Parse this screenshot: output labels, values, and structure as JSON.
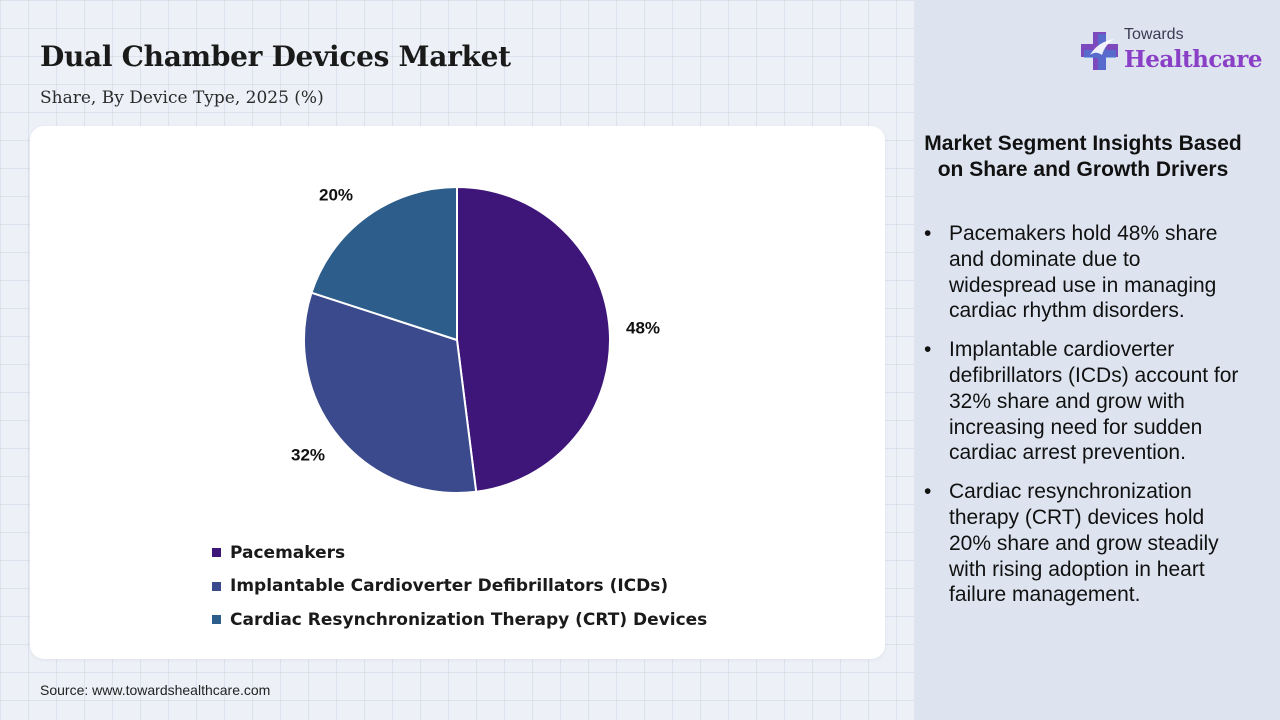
{
  "header": {
    "title": "Dual Chamber Devices Market",
    "subtitle": "Share, By Device Type, 2025 (%)"
  },
  "chart_data": {
    "type": "pie",
    "series": [
      {
        "name": "Pacemakers",
        "value": 48,
        "label": "48%",
        "color": "#3e1578"
      },
      {
        "name": "Implantable Cardioverter Defibrillators (ICDs)",
        "value": 32,
        "label": "32%",
        "color": "#3a4a8c"
      },
      {
        "name": "Cardiac Resynchronization Therapy (CRT) Devices",
        "value": 20,
        "label": "20%",
        "color": "#2d5d8b"
      }
    ],
    "legend_position": "bottom"
  },
  "source": "Source: www.towardshealthcare.com",
  "logo": {
    "top": "Towards",
    "main": "Healthcare",
    "accent_color": "#8a3fc7"
  },
  "insights": {
    "heading": "Market Segment Insights Based on Share and Growth Drivers",
    "bullet": "•",
    "items": [
      "Pacemakers hold 48% share and dominate due to widespread use in managing cardiac rhythm disorders.",
      "Implantable cardioverter defibrillators (ICDs) account for 32% share and grow with increasing need for sudden cardiac arrest prevention.",
      "Cardiac resynchronization therapy (CRT) devices hold 20% share and grow steadily with rising adoption in heart failure management."
    ]
  }
}
